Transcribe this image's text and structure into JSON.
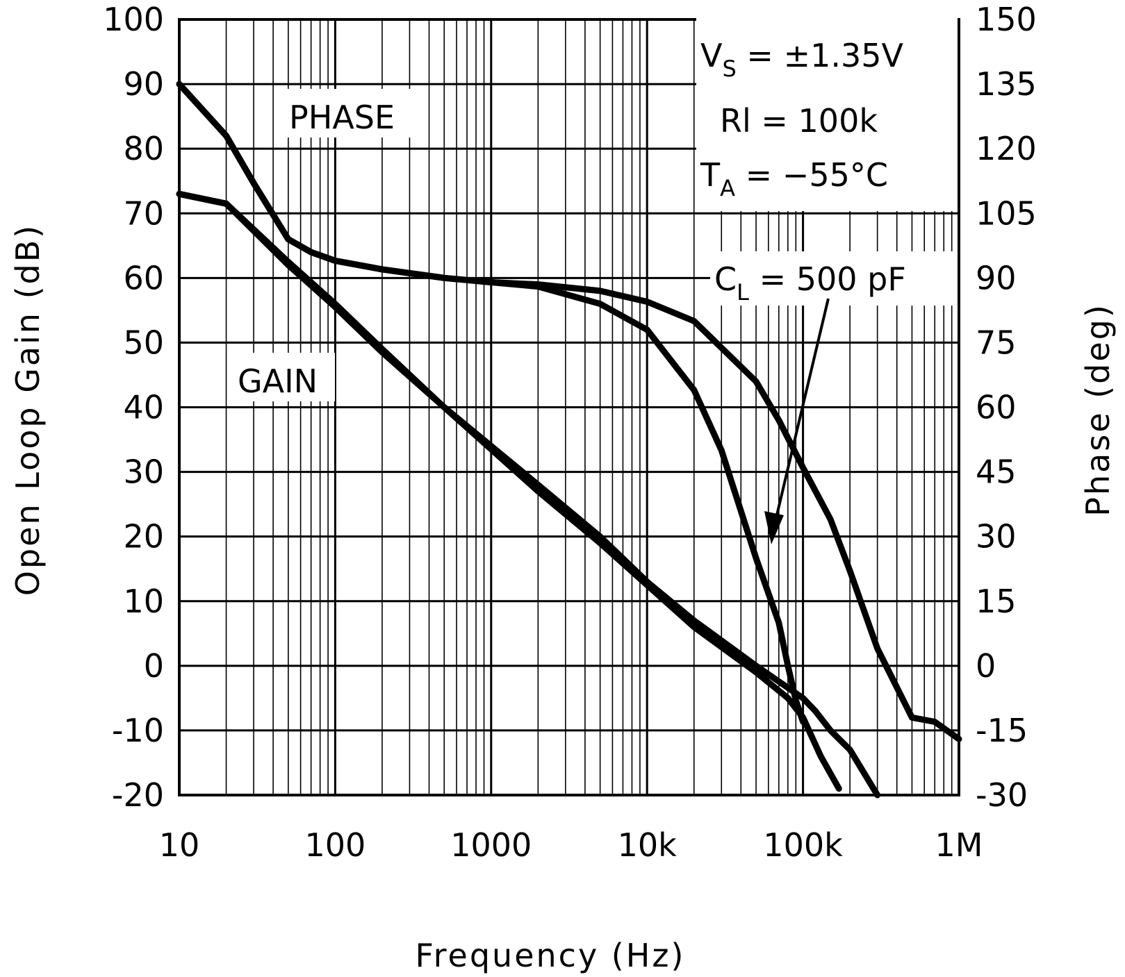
{
  "chart_data": {
    "type": "line",
    "title": "",
    "xlabel": "Frequency (Hz)",
    "ylabel_left": "Open Loop Gain (dB)",
    "ylabel_right": "Phase (deg)",
    "x_scale": "log",
    "xlim": [
      10,
      1000000
    ],
    "ylim_left": [
      -20,
      100
    ],
    "ylim_right": [
      -30,
      150
    ],
    "grid": true,
    "x_ticks": [
      {
        "value": 10,
        "label": "10"
      },
      {
        "value": 100,
        "label": "100"
      },
      {
        "value": 1000,
        "label": "1000"
      },
      {
        "value": 10000,
        "label": "10k"
      },
      {
        "value": 100000,
        "label": "100k"
      },
      {
        "value": 1000000,
        "label": "1M"
      }
    ],
    "y_left_ticks": [
      "100",
      "90",
      "80",
      "70",
      "60",
      "50",
      "40",
      "30",
      "20",
      "10",
      "0",
      "-10",
      "-20"
    ],
    "y_right_ticks": [
      "150",
      "135",
      "120",
      "105",
      "90",
      "75",
      "60",
      "45",
      "30",
      "15",
      "0",
      "-15",
      "-30"
    ],
    "labels": {
      "phase": "PHASE",
      "gain": "GAIN"
    },
    "conditions": {
      "vs_main": "V",
      "vs_sub": "S",
      "vs_value": " = ±1.35V",
      "rl": "Rl = 100k",
      "ta_main": "T",
      "ta_sub": "A",
      "ta_value": " = −55°C"
    },
    "load_annotation": {
      "cl_main": "C",
      "cl_sub": "L",
      "cl_value": " = 500 pF"
    },
    "series": [
      {
        "axis": "left",
        "x": [
          10,
          20,
          50,
          100,
          200,
          500,
          1000,
          2000,
          5000,
          10000,
          20000,
          50000,
          100000,
          120000,
          150000,
          200000,
          300000
        ],
        "y": [
          73,
          71.5,
          62.5,
          56,
          49,
          40,
          34,
          28,
          20,
          13,
          7,
          0,
          -5,
          -7,
          -10,
          -13,
          -20
        ]
      },
      {
        "axis": "left",
        "x": [
          10,
          20,
          50,
          100,
          200,
          500,
          1000,
          2000,
          5000,
          10000,
          20000,
          50000,
          80000,
          100000,
          130000,
          170000
        ],
        "y": [
          73,
          71.5,
          62,
          55.5,
          48.5,
          40,
          33.5,
          27,
          19,
          12.5,
          6,
          -1,
          -5,
          -8,
          -14,
          -19
        ]
      },
      {
        "axis": "right",
        "x": [
          10,
          20,
          30,
          50,
          70,
          100,
          200,
          500,
          1000,
          2000,
          5000,
          10000,
          20000,
          50000,
          70000,
          100000,
          150000,
          200000,
          300000,
          500000,
          700000,
          1000000
        ],
        "y": [
          135,
          123,
          112,
          99,
          96,
          94,
          92,
          90,
          89,
          88.5,
          87,
          84.5,
          80,
          66,
          57,
          46,
          34,
          22,
          4,
          -12,
          -13,
          -17
        ]
      },
      {
        "axis": "right",
        "x": [
          10,
          20,
          30,
          50,
          70,
          100,
          200,
          500,
          1000,
          2000,
          5000,
          10000,
          20000,
          30000,
          50000,
          70000,
          80000,
          90000,
          100000
        ],
        "y": [
          135,
          123,
          112,
          99,
          96,
          94,
          92,
          90,
          89,
          88,
          84,
          78,
          64,
          50,
          25,
          10,
          0,
          -8,
          -13
        ]
      }
    ]
  }
}
